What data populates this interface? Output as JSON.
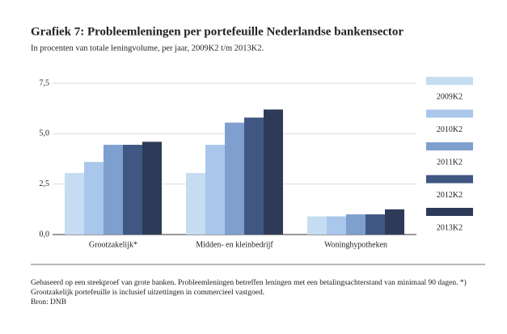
{
  "chart_data": {
    "type": "bar",
    "title": "Grafiek 7: Probleemleningen per portefeuille Nederlandse bankensector",
    "subtitle": "In procenten van totale leningvolume, per jaar, 2009K2 t/m 2013K2.",
    "categories": [
      "Grootzakelijk*",
      "Midden- en kleinbedrijf",
      "Woninghypotheken"
    ],
    "series": [
      {
        "name": "2009K2",
        "color": "#c6dcf2",
        "values": [
          3.05,
          3.05,
          0.9
        ]
      },
      {
        "name": "2010K2",
        "color": "#a9c7ea",
        "values": [
          3.6,
          4.45,
          0.9
        ]
      },
      {
        "name": "2011K2",
        "color": "#7f9fcf",
        "values": [
          4.45,
          5.55,
          1.0
        ]
      },
      {
        "name": "2012K2",
        "color": "#3f5782",
        "values": [
          4.45,
          5.8,
          1.0
        ]
      },
      {
        "name": "2013K2",
        "color": "#2e3a58",
        "values": [
          4.6,
          6.2,
          1.25
        ]
      }
    ],
    "ylim": [
      0,
      7.5
    ],
    "yticks": [
      {
        "value": 0,
        "label": "0,0"
      },
      {
        "value": 2.5,
        "label": "2,5"
      },
      {
        "value": 5,
        "label": "5,0"
      },
      {
        "value": 7.5,
        "label": "7,5"
      }
    ],
    "grid": true,
    "legend": "right",
    "note": "Gebaseerd op een steekproef van grote banken. Probleemleningen betreffen leningen met een betalingsachterstand van minimaal 90 dagen. *) Grootzakelijk portefeuille is inclusief uitzettingen in commercieel vastgoed.",
    "source": "Bron: DNB"
  }
}
